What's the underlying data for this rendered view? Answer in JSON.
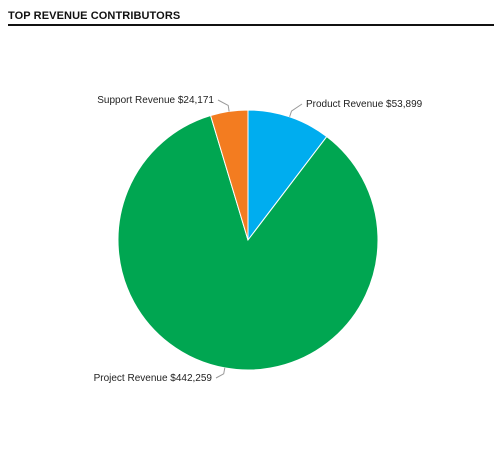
{
  "widget": {
    "title": "TOP REVENUE CONTRIBUTORS"
  },
  "chart_data": {
    "type": "pie",
    "title": "TOP REVENUE CONTRIBUTORS",
    "slices": [
      {
        "key": "product",
        "label": "Product Revenue",
        "value": 53899,
        "display": "$53,899",
        "color": "#00adef"
      },
      {
        "key": "project",
        "label": "Project Revenue",
        "value": 442259,
        "display": "$442,259",
        "color": "#00a651"
      },
      {
        "key": "support",
        "label": "Support Revenue",
        "value": 24171,
        "display": "$24,171",
        "color": "#f37c20"
      }
    ],
    "start": "top",
    "direction": "clockwise",
    "legend": "none",
    "data_labels": "outside-with-leader-lines"
  }
}
